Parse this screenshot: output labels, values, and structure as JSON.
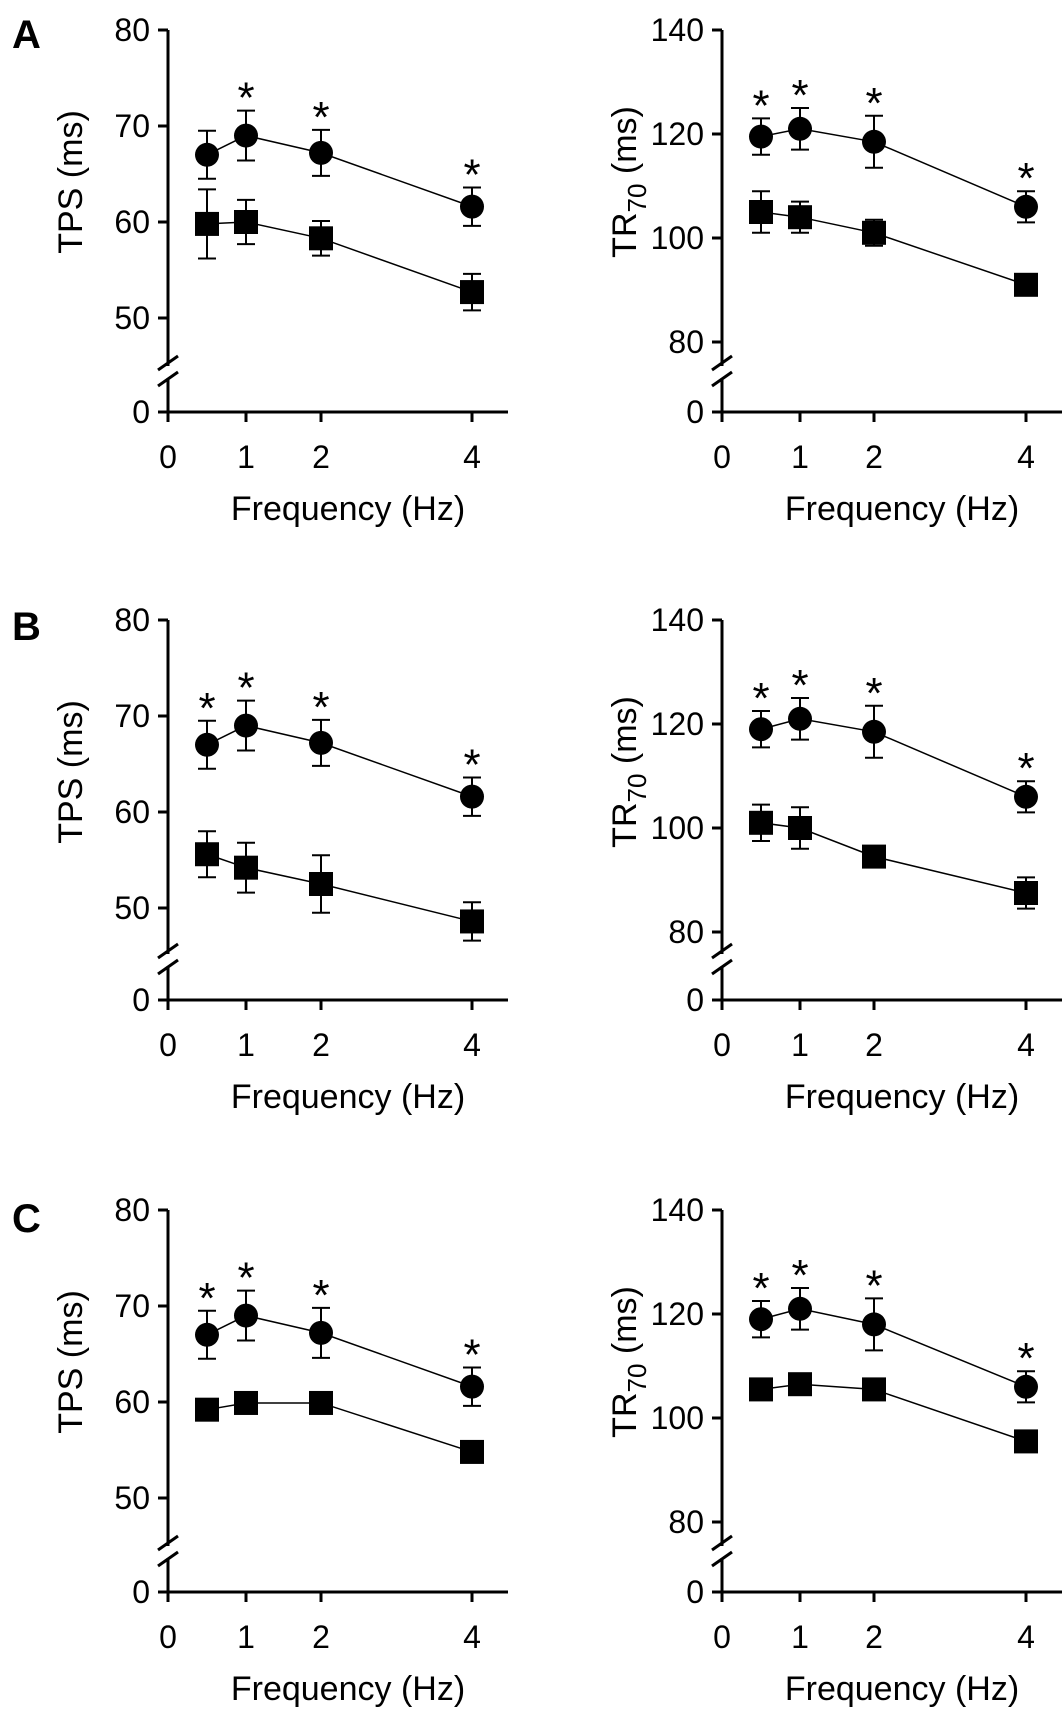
{
  "figure": {
    "panel_letters": [
      "A",
      "B",
      "C"
    ]
  },
  "chart_data": [
    {
      "type": "line",
      "panel": "A",
      "xlabel": "Frequency (Hz)",
      "ylabel": "TPS (ms)",
      "ylabel_sub": "",
      "x_ticks": [
        "0",
        "1",
        "2",
        "4"
      ],
      "y_ticks": [
        "0",
        "50",
        "60",
        "70",
        "80"
      ],
      "ylim": [
        45,
        80
      ],
      "axis_break": true,
      "series": [
        {
          "marker": "circle",
          "x": [
            0.5,
            1,
            2,
            4
          ],
          "y": [
            67.0,
            69.0,
            67.2,
            61.6
          ],
          "err": [
            2.5,
            2.6,
            2.4,
            2.0
          ]
        },
        {
          "marker": "square",
          "x": [
            0.5,
            1,
            2,
            4
          ],
          "y": [
            59.8,
            60.0,
            58.3,
            52.7
          ],
          "err": [
            3.6,
            2.3,
            1.8,
            1.9
          ]
        }
      ],
      "significance": [
        "",
        "*",
        "*",
        "*"
      ]
    },
    {
      "type": "line",
      "panel": "A",
      "xlabel": "Frequency (Hz)",
      "ylabel": "TR",
      "ylabel_sub": "70",
      "ylabel_suffix": " (ms)",
      "x_ticks": [
        "0",
        "1",
        "2",
        "4"
      ],
      "y_ticks": [
        "0",
        "80",
        "100",
        "120",
        "140"
      ],
      "ylim": [
        73,
        140
      ],
      "axis_break": true,
      "series": [
        {
          "marker": "circle",
          "x": [
            0.5,
            1,
            2,
            4
          ],
          "y": [
            119.5,
            121.0,
            118.5,
            106.0
          ],
          "err": [
            3.5,
            4.0,
            5.0,
            3.0
          ]
        },
        {
          "marker": "square",
          "x": [
            0.5,
            1,
            2,
            4
          ],
          "y": [
            105.0,
            104.0,
            101.0,
            91.0
          ],
          "err": [
            4.0,
            3.0,
            2.5,
            1.5
          ]
        }
      ],
      "significance": [
        "*",
        "*",
        "*",
        "*"
      ]
    },
    {
      "type": "line",
      "panel": "B",
      "xlabel": "Frequency (Hz)",
      "ylabel": "TPS (ms)",
      "ylabel_sub": "",
      "x_ticks": [
        "0",
        "1",
        "2",
        "4"
      ],
      "y_ticks": [
        "0",
        "50",
        "60",
        "70",
        "80"
      ],
      "ylim": [
        45,
        80
      ],
      "axis_break": true,
      "series": [
        {
          "marker": "circle",
          "x": [
            0.5,
            1,
            2,
            4
          ],
          "y": [
            67.0,
            69.0,
            67.2,
            61.6
          ],
          "err": [
            2.5,
            2.6,
            2.4,
            2.0
          ]
        },
        {
          "marker": "square",
          "x": [
            0.5,
            1,
            2,
            4
          ],
          "y": [
            55.6,
            54.2,
            52.5,
            48.6
          ],
          "err": [
            2.4,
            2.6,
            3.0,
            2.0
          ]
        }
      ],
      "significance": [
        "*",
        "*",
        "*",
        "*"
      ]
    },
    {
      "type": "line",
      "panel": "B",
      "xlabel": "Frequency (Hz)",
      "ylabel": "TR",
      "ylabel_sub": "70",
      "ylabel_suffix": " (ms)",
      "x_ticks": [
        "0",
        "1",
        "2",
        "4"
      ],
      "y_ticks": [
        "0",
        "80",
        "100",
        "120",
        "140"
      ],
      "ylim": [
        73,
        140
      ],
      "axis_break": true,
      "series": [
        {
          "marker": "circle",
          "x": [
            0.5,
            1,
            2,
            4
          ],
          "y": [
            119.0,
            121.0,
            118.5,
            106.0
          ],
          "err": [
            3.5,
            4.0,
            5.0,
            3.0
          ]
        },
        {
          "marker": "square",
          "x": [
            0.5,
            1,
            2,
            4
          ],
          "y": [
            101.0,
            100.0,
            94.5,
            87.5
          ],
          "err": [
            3.5,
            4.0,
            2.0,
            3.0
          ]
        }
      ],
      "significance": [
        "*",
        "*",
        "*",
        "*"
      ]
    },
    {
      "type": "line",
      "panel": "C",
      "xlabel": "Frequency (Hz)",
      "ylabel": "TPS (ms)",
      "ylabel_sub": "",
      "x_ticks": [
        "0",
        "1",
        "2",
        "4"
      ],
      "y_ticks": [
        "0",
        "50",
        "60",
        "70",
        "80"
      ],
      "ylim": [
        45,
        80
      ],
      "axis_break": true,
      "series": [
        {
          "marker": "circle",
          "x": [
            0.5,
            1,
            2,
            4
          ],
          "y": [
            67.0,
            69.0,
            67.2,
            61.6
          ],
          "err": [
            2.5,
            2.6,
            2.6,
            2.0
          ]
        },
        {
          "marker": "square",
          "x": [
            0.5,
            1,
            2,
            4
          ],
          "y": [
            59.2,
            59.9,
            59.9,
            54.8
          ],
          "err": [
            0,
            0,
            0,
            0
          ]
        }
      ],
      "significance": [
        "*",
        "*",
        "*",
        "*"
      ]
    },
    {
      "type": "line",
      "panel": "C",
      "xlabel": "Frequency (Hz)",
      "ylabel": "TR",
      "ylabel_sub": "70",
      "ylabel_suffix": " (ms)",
      "x_ticks": [
        "0",
        "1",
        "2",
        "4"
      ],
      "y_ticks": [
        "0",
        "80",
        "100",
        "120",
        "140"
      ],
      "ylim": [
        73,
        140
      ],
      "axis_break": true,
      "series": [
        {
          "marker": "circle",
          "x": [
            0.5,
            1,
            2,
            4
          ],
          "y": [
            119.0,
            121.0,
            118.0,
            106.0
          ],
          "err": [
            3.5,
            4.0,
            5.0,
            3.0
          ]
        },
        {
          "marker": "square",
          "x": [
            0.5,
            1,
            2,
            4
          ],
          "y": [
            105.5,
            106.5,
            105.5,
            95.5
          ],
          "err": [
            0,
            0,
            0,
            0
          ]
        }
      ],
      "significance": [
        "*",
        "*",
        "*",
        "*"
      ]
    }
  ]
}
